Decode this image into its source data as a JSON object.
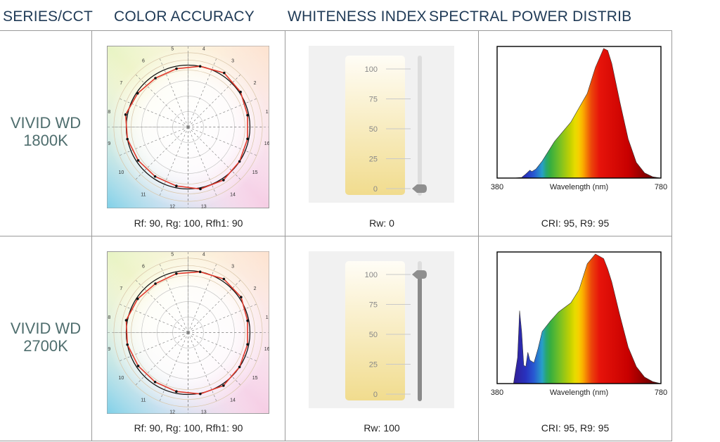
{
  "headers": {
    "series": "SERIES/CCT",
    "color_accuracy": "COLOR ACCURACY",
    "whiteness": "WHITENESS INDEX",
    "spd": "SPECTRAL POWER DISTRIB"
  },
  "colors": {
    "header_text": "#1f3a56",
    "series_text": "#4f6e6e",
    "test_curve": "#e0392b",
    "reference_curve": "#111111"
  },
  "rows": [
    {
      "series_line1": "VIVID WD",
      "series_line2": "1800K",
      "color_caption": "Rf: 90, Rg: 100, Rfh1: 90",
      "whiteness_caption": "Rw: 0",
      "spd_caption": "CRI: 95, R9: 95"
    },
    {
      "series_line1": "VIVID WD",
      "series_line2": "2700K",
      "color_caption": "Rf: 90, Rg: 100, Rfh1: 90",
      "whiteness_caption": "Rw: 100",
      "spd_caption": "CRI: 95, R9: 95"
    }
  ],
  "chart_data": [
    {
      "type": "radar",
      "hue_bins": [
        "1",
        "2",
        "3",
        "4",
        "5",
        "6",
        "7",
        "8",
        "9",
        "10",
        "11",
        "12",
        "13",
        "14",
        "15",
        "16"
      ],
      "test_radius": [
        0.98,
        1.02,
        1.05,
        1.0,
        0.96,
        0.95,
        0.98,
        1.03,
        1.0,
        0.97,
        0.96,
        0.97,
        1.02,
        1.03,
        1.0,
        0.98
      ]
    },
    {
      "type": "gauge",
      "title": "Rw",
      "ticks": [
        "100",
        "75",
        "50",
        "25",
        "0"
      ],
      "value": 0,
      "min": 0,
      "max": 100
    },
    {
      "type": "area",
      "xlabel": "Wavelength (nm)",
      "xlim": [
        380,
        780
      ],
      "xtick_labels": [
        "380",
        "780"
      ],
      "x": [
        380,
        420,
        440,
        450,
        460,
        465,
        475,
        490,
        520,
        560,
        600,
        620,
        640,
        650,
        660,
        680,
        700,
        720,
        740,
        760,
        780
      ],
      "y": [
        0,
        0,
        0.005,
        0.03,
        0.06,
        0.05,
        0.07,
        0.13,
        0.28,
        0.43,
        0.65,
        0.85,
        0.995,
        0.98,
        0.88,
        0.58,
        0.3,
        0.12,
        0.04,
        0.01,
        0
      ]
    },
    {
      "type": "radar",
      "hue_bins": [
        "1",
        "2",
        "3",
        "4",
        "5",
        "6",
        "7",
        "8",
        "9",
        "10",
        "11",
        "12",
        "13",
        "14",
        "15",
        "16"
      ],
      "test_radius": [
        0.98,
        1.03,
        1.04,
        1.0,
        0.97,
        0.95,
        0.98,
        1.02,
        1.0,
        0.97,
        0.96,
        0.97,
        1.01,
        1.03,
        1.0,
        0.98
      ]
    },
    {
      "type": "gauge",
      "title": "Rw",
      "ticks": [
        "100",
        "75",
        "50",
        "25",
        "0"
      ],
      "value": 100,
      "min": 0,
      "max": 100
    },
    {
      "type": "area",
      "xlabel": "Wavelength (nm)",
      "xlim": [
        380,
        780
      ],
      "xtick_labels": [
        "380",
        "780"
      ],
      "x": [
        380,
        420,
        430,
        435,
        440,
        445,
        450,
        455,
        460,
        470,
        480,
        490,
        510,
        530,
        560,
        580,
        600,
        620,
        640,
        650,
        660,
        680,
        700,
        720,
        740,
        760,
        780
      ],
      "y": [
        0,
        0,
        0.2,
        0.56,
        0.4,
        0.14,
        0.13,
        0.24,
        0.18,
        0.16,
        0.27,
        0.4,
        0.48,
        0.55,
        0.62,
        0.72,
        0.92,
        0.995,
        0.96,
        0.88,
        0.78,
        0.52,
        0.28,
        0.13,
        0.05,
        0.015,
        0
      ]
    }
  ]
}
